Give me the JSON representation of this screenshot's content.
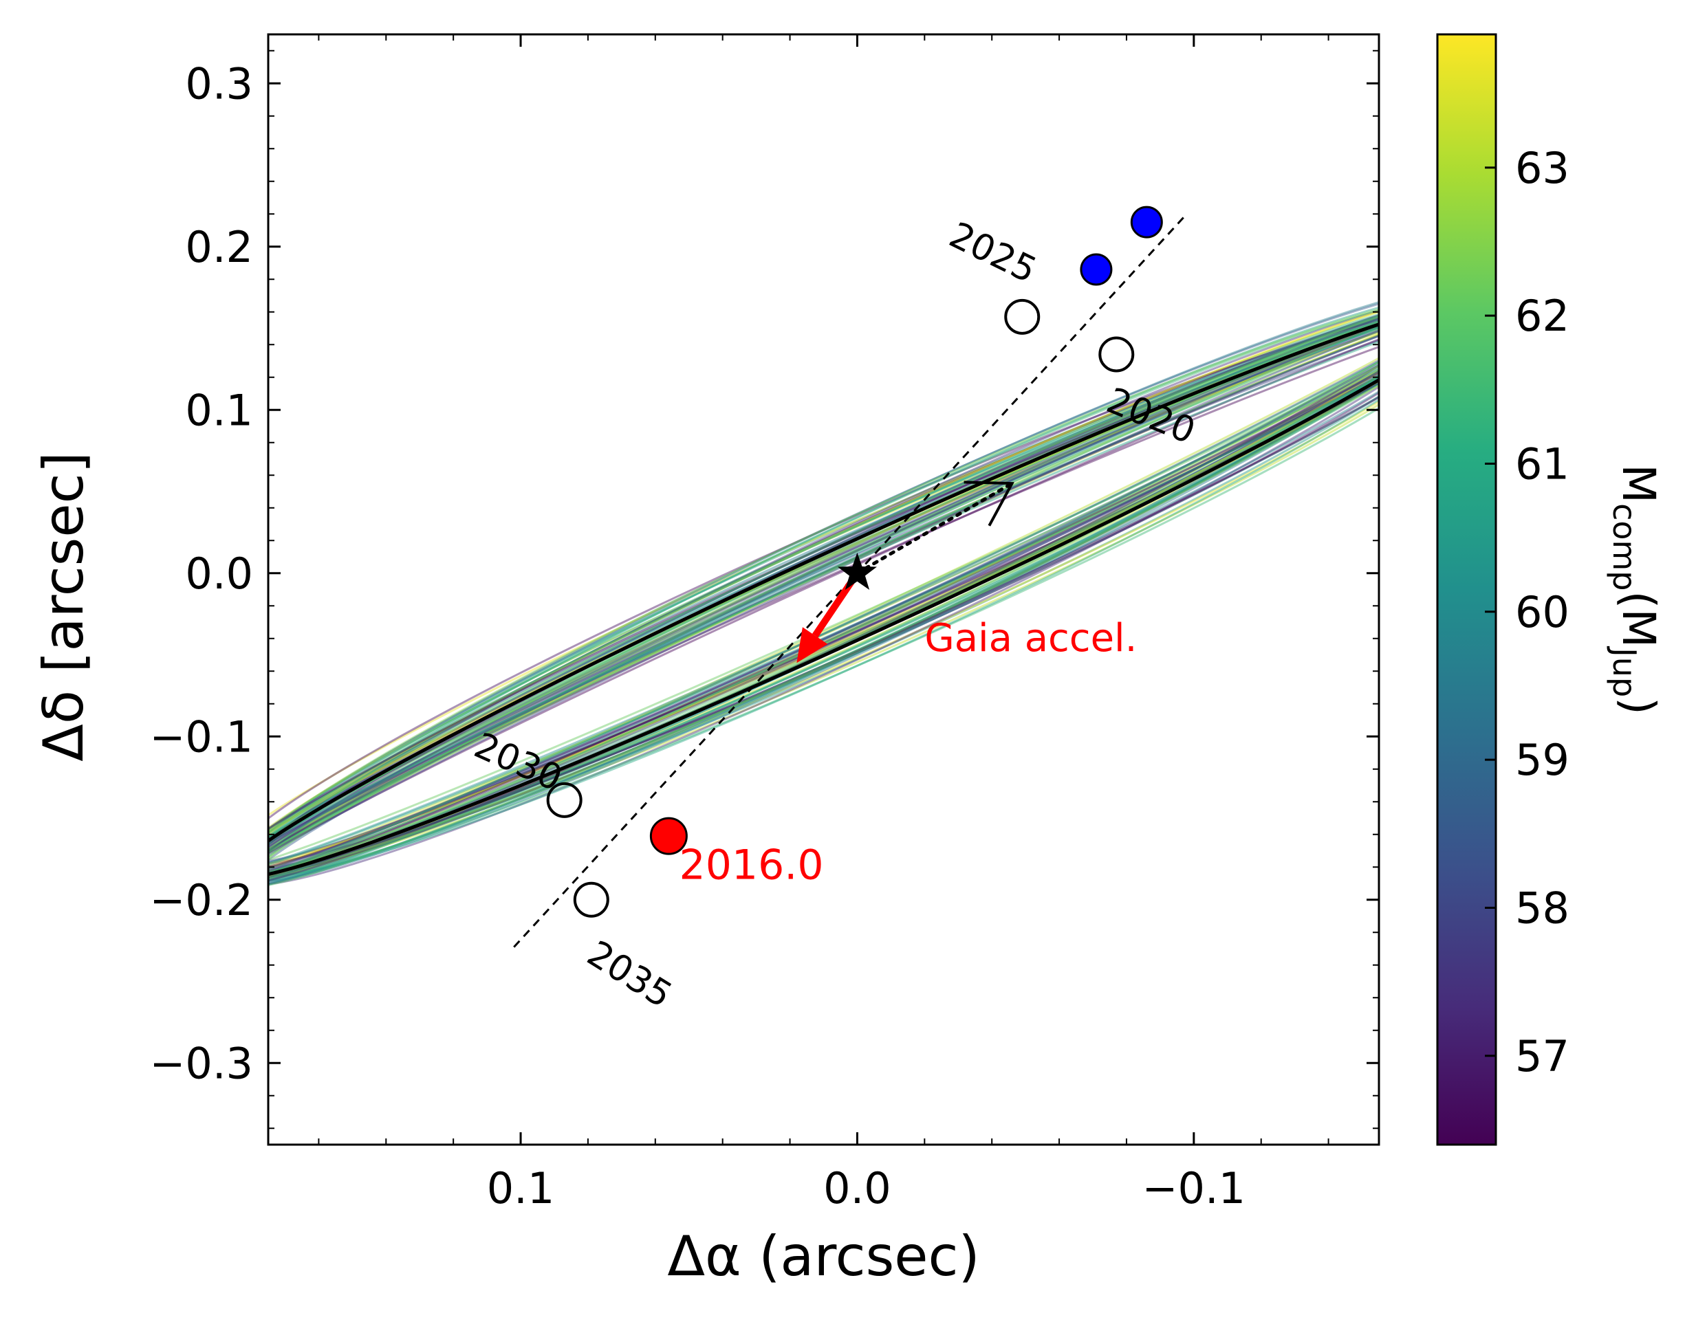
{
  "chart_data": {
    "type": "scatter",
    "xlabel": "Δα (arcsec)",
    "ylabel": "Δδ [arcsec]",
    "xlim": [
      0.175,
      -0.155
    ],
    "ylim": [
      -0.35,
      0.33
    ],
    "x_ticks": [
      0.1,
      0.0,
      -0.1
    ],
    "x_tick_labels": [
      "0.1",
      "0.0",
      "−0.1"
    ],
    "y_ticks": [
      0.3,
      0.2,
      0.1,
      0.0,
      -0.1,
      -0.2,
      -0.3
    ],
    "y_tick_labels": [
      "0.3",
      "0.2",
      "0.1",
      "0.0",
      "−0.1",
      "−0.2",
      "−0.3"
    ],
    "grid": false,
    "colorbar": {
      "label_main": "M",
      "label_sub1": "comp",
      "label_mid": "(M",
      "label_sub2": "Jup",
      "label_end": ")",
      "range": [
        56.4,
        63.9
      ],
      "ticks": [
        57,
        58,
        59,
        60,
        61,
        62,
        63
      ],
      "tick_labels": [
        "57",
        "58",
        "59",
        "60",
        "61",
        "62",
        "63"
      ],
      "colormap": [
        "#440154",
        "#472c7a",
        "#3b518b",
        "#2c718e",
        "#21908d",
        "#27ad81",
        "#5cc863",
        "#aadc32",
        "#fde725"
      ]
    },
    "best_orbit": {
      "center": [
        0.0,
        -0.01
      ],
      "semi_major": 0.255,
      "semi_minor": 0.0226,
      "angle_deg": 43.6,
      "color": "#000000"
    },
    "orbit_samples": {
      "count": 60,
      "colors_range": "viridis"
    },
    "line_of_nodes": {
      "points": [
        [
          0.102,
          -0.229
        ],
        [
          -0.097,
          0.218
        ]
      ]
    },
    "host_star": {
      "x": 0.0,
      "y": 0.0,
      "marker": "star"
    },
    "motion_arrow": {
      "from": [
        0.0,
        0.0
      ],
      "to": [
        -0.046,
        0.055
      ]
    },
    "gaia_acceleration": {
      "from": [
        0.0,
        0.0
      ],
      "to": [
        0.018,
        -0.055
      ],
      "label": "Gaia accel.",
      "label_pos": [
        -0.02,
        -0.04
      ],
      "color": "#ff0000"
    },
    "epoch_markers": [
      {
        "x": -0.077,
        "y": 0.134,
        "label": "2020",
        "label_pos": [
          -0.087,
          0.095
        ],
        "label_rot": 22
      },
      {
        "x": -0.049,
        "y": 0.157,
        "label": "2025",
        "label_pos": [
          -0.04,
          0.195
        ],
        "label_rot": 26
      },
      {
        "x": 0.087,
        "y": -0.139,
        "label": "2030",
        "label_pos": [
          0.101,
          -0.117
        ],
        "label_rot": 24
      },
      {
        "x": 0.079,
        "y": -0.2,
        "label": "2035",
        "label_pos": [
          0.068,
          -0.247
        ],
        "label_rot": 32
      }
    ],
    "observed_points": [
      {
        "x": -0.071,
        "y": 0.186,
        "color": "#0000ff"
      },
      {
        "x": -0.086,
        "y": 0.215,
        "color": "#0000ff"
      }
    ],
    "reference_epoch": {
      "x": 0.056,
      "y": -0.161,
      "label": "2016.0",
      "label_pos": [
        0.01,
        -0.178
      ],
      "color": "#ff0000"
    }
  }
}
